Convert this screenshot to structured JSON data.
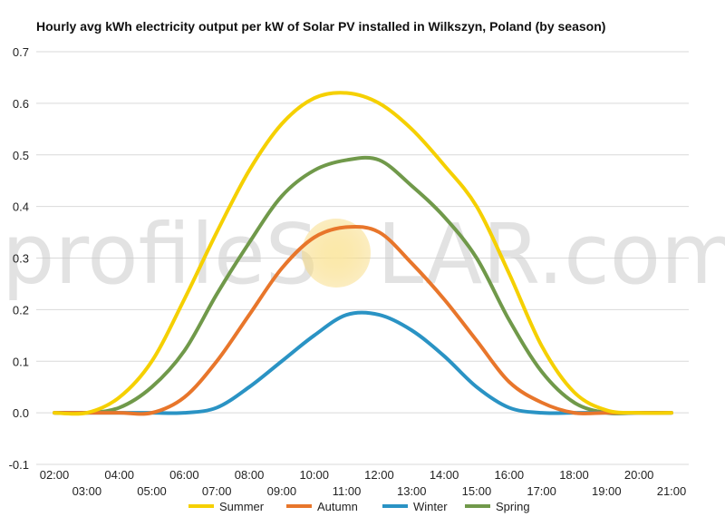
{
  "chart_data": {
    "type": "line",
    "title": "Hourly avg kWh electricity output per kW of Solar PV installed in Wilkszyn, Poland (by season)",
    "x": [
      "02:00",
      "03:00",
      "04:00",
      "05:00",
      "06:00",
      "07:00",
      "08:00",
      "09:00",
      "10:00",
      "11:00",
      "12:00",
      "13:00",
      "14:00",
      "15:00",
      "16:00",
      "17:00",
      "18:00",
      "19:00",
      "20:00",
      "21:00"
    ],
    "x_tick_labels_upper": [
      "02:00",
      "04:00",
      "06:00",
      "08:00",
      "10:00",
      "12:00",
      "14:00",
      "16:00",
      "18:00",
      "20:00"
    ],
    "x_tick_labels_lower": [
      "03:00",
      "05:00",
      "07:00",
      "09:00",
      "11:00",
      "13:00",
      "15:00",
      "17:00",
      "19:00",
      "21:00"
    ],
    "ylim": [
      -0.1,
      0.7
    ],
    "y_ticks": [
      -0.1,
      0.0,
      0.1,
      0.2,
      0.3,
      0.4,
      0.5,
      0.6,
      0.7
    ],
    "y_tick_labels": [
      "-0.1",
      "0.0",
      "0.1",
      "0.2",
      "0.3",
      "0.4",
      "0.5",
      "0.6",
      "0.7"
    ],
    "grid": true,
    "legend_position": "bottom",
    "series": [
      {
        "name": "Summer",
        "color": "#f5d000",
        "values": [
          0,
          0,
          0.03,
          0.1,
          0.22,
          0.35,
          0.47,
          0.56,
          0.61,
          0.62,
          0.6,
          0.55,
          0.48,
          0.4,
          0.27,
          0.13,
          0.04,
          0.005,
          0,
          0
        ]
      },
      {
        "name": "Autumn",
        "color": "#e8762b",
        "values": [
          0,
          0,
          0,
          0,
          0.03,
          0.1,
          0.19,
          0.28,
          0.34,
          0.36,
          0.35,
          0.29,
          0.22,
          0.14,
          0.06,
          0.02,
          0,
          0,
          0,
          0
        ]
      },
      {
        "name": "Winter",
        "color": "#2a93c4",
        "values": [
          0,
          0,
          0,
          0,
          0,
          0.01,
          0.05,
          0.1,
          0.15,
          0.19,
          0.19,
          0.16,
          0.11,
          0.05,
          0.01,
          0,
          0,
          0,
          0,
          0
        ]
      },
      {
        "name": "Spring",
        "color": "#70994a",
        "values": [
          0,
          0,
          0.01,
          0.05,
          0.12,
          0.23,
          0.33,
          0.42,
          0.47,
          0.49,
          0.49,
          0.44,
          0.38,
          0.3,
          0.18,
          0.08,
          0.02,
          0,
          0,
          0
        ]
      }
    ]
  },
  "watermark": {
    "text_left": "profileS",
    "text_right": "LAR.com",
    "sun_color": "#f7d774"
  }
}
